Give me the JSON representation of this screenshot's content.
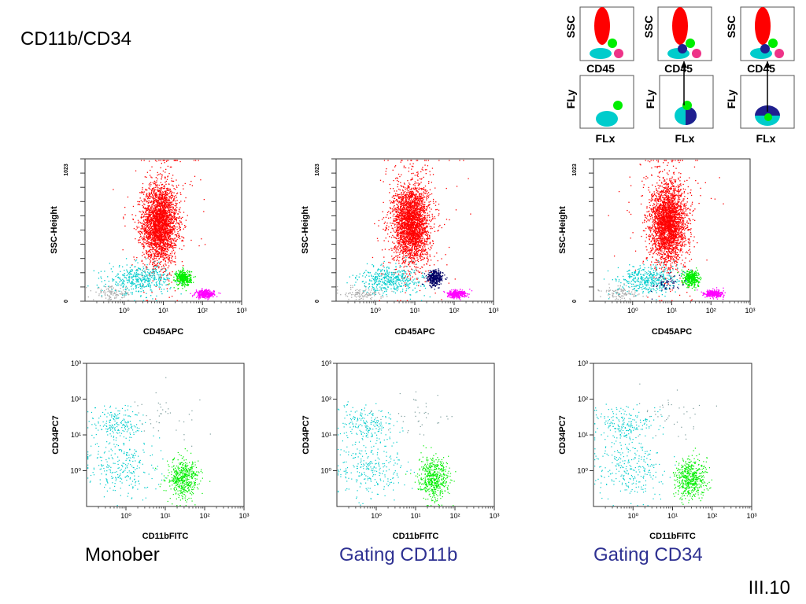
{
  "slide": {
    "title": "CD11b/CD34",
    "number": "III.10",
    "captions": [
      {
        "text": "Monober",
        "style": "plain"
      },
      {
        "text": "Gating CD11b",
        "style": "blue"
      },
      {
        "text": "Gating CD34",
        "style": "blue"
      }
    ]
  },
  "colors": {
    "granulocytes": "#ff0000",
    "monocytes": "#00ee00",
    "lymphocytes": "#ff00ff",
    "blasts": "#00cccc",
    "debris": "#aaaaaa",
    "gated": "#000066",
    "schematic_dark": "#1f1f8f",
    "schematic_pink": "#ee3388"
  },
  "schematics": {
    "top_row": [
      {
        "ylabel": "SSC",
        "xlabel": "CD45"
      },
      {
        "ylabel": "SSC",
        "xlabel": "CD45"
      },
      {
        "ylabel": "SSC",
        "xlabel": "CD45"
      }
    ],
    "bottom_row": [
      {
        "ylabel": "FLy",
        "xlabel": "FLx"
      },
      {
        "ylabel": "FLy",
        "xlabel": "FLx"
      },
      {
        "ylabel": "FLy",
        "xlabel": "FLx"
      }
    ]
  },
  "chart_data": [
    {
      "type": "scatter",
      "title": "",
      "xlabel": "CD45APC",
      "ylabel": "SSC-Height",
      "xscale": "log",
      "xlim": [
        0.1,
        1000
      ],
      "ylim": [
        0,
        1023
      ],
      "x_ticks": [
        "10⁰",
        "10¹",
        "10²",
        "10³"
      ],
      "y_ticks": [
        "0",
        "1023"
      ],
      "gating": "none"
    },
    {
      "type": "scatter",
      "title": "",
      "xlabel": "CD45APC",
      "ylabel": "SSC-Height",
      "xscale": "log",
      "xlim": [
        0.1,
        1000
      ],
      "ylim": [
        0,
        1023
      ],
      "x_ticks": [
        "10⁰",
        "10¹",
        "10²",
        "10³"
      ],
      "y_ticks": [
        "0",
        "1023"
      ],
      "gating": "CD11b"
    },
    {
      "type": "scatter",
      "title": "",
      "xlabel": "CD45APC",
      "ylabel": "SSC-Height",
      "xscale": "log",
      "xlim": [
        0.1,
        1000
      ],
      "ylim": [
        0,
        1023
      ],
      "x_ticks": [
        "10⁰",
        "10¹",
        "10²",
        "10³"
      ],
      "y_ticks": [
        "0",
        "1023"
      ],
      "gating": "CD34"
    },
    {
      "type": "scatter",
      "title": "",
      "xlabel": "CD11bFITC",
      "ylabel": "CD34PC7",
      "xscale": "log",
      "yscale": "log",
      "xlim": [
        0.1,
        1000
      ],
      "ylim": [
        0.1,
        1000
      ],
      "x_ticks": [
        "10⁰",
        "10¹",
        "10²",
        "10³"
      ],
      "y_ticks": [
        "10⁰",
        "10¹",
        "10²",
        "10³"
      ],
      "gating": "none"
    },
    {
      "type": "scatter",
      "title": "",
      "xlabel": "CD11bFITC",
      "ylabel": "CD34PC7",
      "xscale": "log",
      "yscale": "log",
      "xlim": [
        0.1,
        1000
      ],
      "ylim": [
        0.1,
        1000
      ],
      "x_ticks": [
        "10⁰",
        "10¹",
        "10²",
        "10³"
      ],
      "y_ticks": [
        "10⁰",
        "10¹",
        "10²",
        "10³"
      ],
      "gating": "CD11b"
    },
    {
      "type": "scatter",
      "title": "",
      "xlabel": "CD11bFITC",
      "ylabel": "CD34PC7",
      "xscale": "log",
      "yscale": "log",
      "xlim": [
        0.1,
        1000
      ],
      "ylim": [
        0.1,
        1000
      ],
      "x_ticks": [
        "10⁰",
        "10¹",
        "10²",
        "10³"
      ],
      "y_ticks": [
        "10⁰",
        "10¹",
        "10²",
        "10³"
      ],
      "gating": "CD34"
    }
  ]
}
